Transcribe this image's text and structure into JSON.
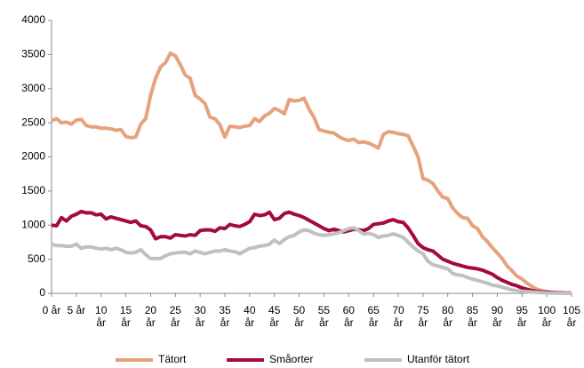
{
  "chart_data": {
    "type": "line",
    "x": [
      0,
      1,
      2,
      3,
      4,
      5,
      6,
      7,
      8,
      9,
      10,
      11,
      12,
      13,
      14,
      15,
      16,
      17,
      18,
      19,
      20,
      21,
      22,
      23,
      24,
      25,
      26,
      27,
      28,
      29,
      30,
      31,
      32,
      33,
      34,
      35,
      36,
      37,
      38,
      39,
      40,
      41,
      42,
      43,
      44,
      45,
      46,
      47,
      48,
      49,
      50,
      51,
      52,
      53,
      54,
      55,
      56,
      57,
      58,
      59,
      60,
      61,
      62,
      63,
      64,
      65,
      66,
      67,
      68,
      69,
      70,
      71,
      72,
      73,
      74,
      75,
      76,
      77,
      78,
      79,
      80,
      81,
      82,
      83,
      84,
      85,
      86,
      87,
      88,
      89,
      90,
      91,
      92,
      93,
      94,
      95,
      96,
      97,
      98,
      99,
      100,
      101,
      102,
      103,
      104,
      105
    ],
    "series": [
      {
        "name": "Tätort",
        "color": "#e6a27d",
        "values": [
          2530,
          2560,
          2500,
          2510,
          2480,
          2540,
          2550,
          2460,
          2440,
          2440,
          2420,
          2420,
          2410,
          2390,
          2400,
          2300,
          2280,
          2290,
          2480,
          2560,
          2900,
          3150,
          3320,
          3380,
          3520,
          3480,
          3350,
          3200,
          3150,
          2900,
          2850,
          2780,
          2580,
          2560,
          2470,
          2290,
          2450,
          2440,
          2430,
          2450,
          2460,
          2560,
          2520,
          2600,
          2640,
          2710,
          2680,
          2630,
          2840,
          2820,
          2830,
          2860,
          2700,
          2580,
          2400,
          2380,
          2360,
          2350,
          2300,
          2260,
          2240,
          2260,
          2210,
          2220,
          2200,
          2170,
          2130,
          2330,
          2370,
          2360,
          2340,
          2330,
          2310,
          2160,
          2000,
          1680,
          1660,
          1610,
          1500,
          1410,
          1390,
          1250,
          1170,
          1110,
          1100,
          990,
          950,
          830,
          760,
          670,
          590,
          510,
          400,
          330,
          250,
          210,
          150,
          100,
          60,
          40,
          25,
          15,
          10,
          5,
          3,
          2
        ]
      },
      {
        "name": "Småorter",
        "color": "#a50a3c",
        "values": [
          1000,
          990,
          1110,
          1060,
          1130,
          1160,
          1200,
          1180,
          1180,
          1150,
          1160,
          1090,
          1120,
          1100,
          1080,
          1060,
          1040,
          1060,
          990,
          980,
          930,
          800,
          830,
          830,
          810,
          860,
          850,
          840,
          860,
          850,
          920,
          930,
          930,
          910,
          960,
          950,
          1010,
          990,
          980,
          1010,
          1050,
          1160,
          1140,
          1150,
          1190,
          1080,
          1100,
          1170,
          1190,
          1160,
          1140,
          1110,
          1070,
          1030,
          990,
          950,
          920,
          940,
          920,
          900,
          920,
          940,
          930,
          920,
          950,
          1010,
          1020,
          1030,
          1060,
          1080,
          1050,
          1040,
          960,
          850,
          730,
          670,
          640,
          620,
          560,
          500,
          470,
          440,
          420,
          400,
          380,
          370,
          360,
          340,
          310,
          280,
          230,
          190,
          160,
          130,
          110,
          80,
          60,
          40,
          30,
          20,
          15,
          12,
          10,
          8,
          5,
          3
        ]
      },
      {
        "name": "Utanför tätort",
        "color": "#c0c0c0",
        "values": [
          720,
          700,
          700,
          690,
          690,
          720,
          660,
          680,
          680,
          660,
          650,
          660,
          640,
          660,
          640,
          600,
          590,
          600,
          640,
          570,
          510,
          510,
          510,
          550,
          580,
          590,
          600,
          600,
          580,
          620,
          600,
          580,
          600,
          620,
          620,
          640,
          620,
          610,
          580,
          620,
          660,
          670,
          690,
          700,
          720,
          780,
          730,
          790,
          830,
          850,
          900,
          930,
          920,
          880,
          860,
          850,
          860,
          870,
          890,
          920,
          950,
          960,
          920,
          870,
          880,
          860,
          820,
          840,
          850,
          870,
          850,
          820,
          750,
          680,
          620,
          580,
          470,
          420,
          400,
          380,
          360,
          290,
          270,
          260,
          230,
          210,
          190,
          170,
          150,
          120,
          110,
          90,
          70,
          50,
          40,
          30,
          25,
          20,
          15,
          10,
          5,
          3,
          2,
          1,
          0,
          0
        ]
      }
    ],
    "xlim": [
      0,
      105
    ],
    "xticks": [
      {
        "value": 0,
        "label": "0 år"
      },
      {
        "value": 5,
        "label": "5 år"
      },
      {
        "value": 10,
        "label": "10 år"
      },
      {
        "value": 15,
        "label": "15 år"
      },
      {
        "value": 20,
        "label": "20 år"
      },
      {
        "value": 25,
        "label": "25 år"
      },
      {
        "value": 30,
        "label": "30 år"
      },
      {
        "value": 35,
        "label": "35 år"
      },
      {
        "value": 40,
        "label": "40 år"
      },
      {
        "value": 45,
        "label": "45 år"
      },
      {
        "value": 50,
        "label": "50 år"
      },
      {
        "value": 55,
        "label": "55 år"
      },
      {
        "value": 60,
        "label": "60 år"
      },
      {
        "value": 65,
        "label": "65 år"
      },
      {
        "value": 70,
        "label": "70 år"
      },
      {
        "value": 75,
        "label": "75 år"
      },
      {
        "value": 80,
        "label": "80 år"
      },
      {
        "value": 85,
        "label": "85 år"
      },
      {
        "value": 90,
        "label": "90 år"
      },
      {
        "value": 95,
        "label": "95 år"
      },
      {
        "value": 100,
        "label": "100 år"
      },
      {
        "value": 105,
        "label": "105 år"
      }
    ],
    "ylim": [
      0,
      4000
    ],
    "yticks": [
      0,
      500,
      1000,
      1500,
      2000,
      2500,
      3000,
      3500,
      4000
    ],
    "grid": false,
    "legend": "bottom"
  }
}
